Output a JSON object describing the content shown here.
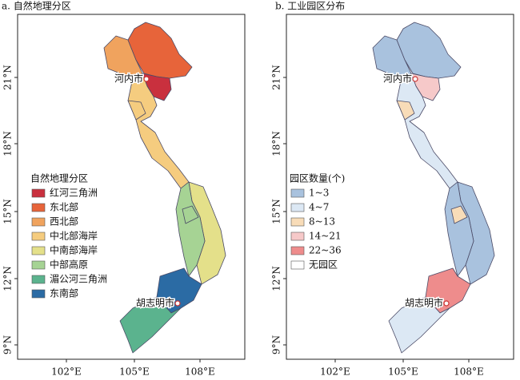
{
  "panels": [
    {
      "title": "a. 自然地理分区",
      "legend": {
        "title": "自然地理分区",
        "items": [
          {
            "label": "红河三角洲",
            "color": "#c9303e"
          },
          {
            "label": "东北部",
            "color": "#e7643a"
          },
          {
            "label": "西北部",
            "color": "#f0a35e"
          },
          {
            "label": "中北部海岸",
            "color": "#f5cc7f"
          },
          {
            "label": "中南部海岸",
            "color": "#e4e08a"
          },
          {
            "label": "中部高原",
            "color": "#a6d394"
          },
          {
            "label": "湄公河三角洲",
            "color": "#5bb38e"
          },
          {
            "label": "东南部",
            "color": "#2b6ba4"
          }
        ]
      },
      "cities": [
        "河内市",
        "胡志明市"
      ],
      "lat_ticks": [
        "21°N",
        "18°N",
        "15°N",
        "12°N",
        "9°N"
      ],
      "lon_ticks": [
        "102°E",
        "105°E",
        "108°E"
      ]
    },
    {
      "title": "b. 工业园区分布",
      "legend": {
        "title": "园区数量(个)",
        "items": [
          {
            "label": "1~3",
            "color": "#a9c2de"
          },
          {
            "label": "4~7",
            "color": "#dce8f4"
          },
          {
            "label": "8~13",
            "color": "#f8dcb8"
          },
          {
            "label": "14~21",
            "color": "#f6c9c9"
          },
          {
            "label": "22~36",
            "color": "#ee8c8c"
          },
          {
            "label": "无园区",
            "color": "#ffffff"
          }
        ]
      },
      "cities": [
        "河内市",
        "胡志明市"
      ],
      "lat_ticks": [
        "21°N",
        "18°N",
        "15°N",
        "12°N",
        "9°N"
      ],
      "lon_ticks": [
        "102°E",
        "105°E",
        "108°E"
      ]
    }
  ]
}
